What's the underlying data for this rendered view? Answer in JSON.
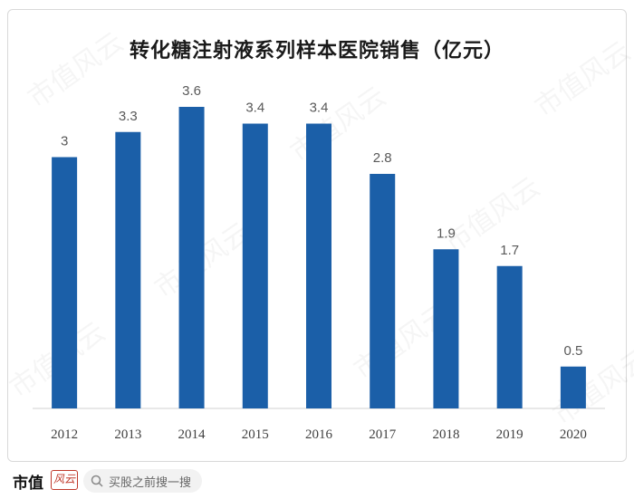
{
  "chart_data": {
    "type": "bar",
    "title": "转化糖注射液系列样本医院销售（亿元）",
    "categories": [
      "2012",
      "2013",
      "2014",
      "2015",
      "2016",
      "2017",
      "2018",
      "2019",
      "2020"
    ],
    "values": [
      3,
      3.3,
      3.6,
      3.4,
      3.4,
      2.8,
      1.9,
      1.7,
      0.5
    ],
    "value_labels": [
      "3",
      "3.3",
      "3.6",
      "3.4",
      "3.4",
      "2.8",
      "1.9",
      "1.7",
      "0.5"
    ],
    "xlabel": "",
    "ylabel": "",
    "ylim": [
      0,
      4
    ],
    "grid": false,
    "bar_color": "#1b5fa8"
  },
  "watermark": {
    "text": "市值风云"
  },
  "footer": {
    "brand": "市值",
    "brand_logo_text": "风云",
    "search_text": "买股之前搜一搜",
    "search_icon": "search-icon"
  }
}
